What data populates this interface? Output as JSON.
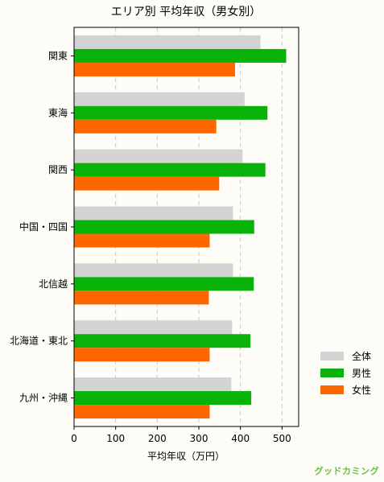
{
  "chart_data": {
    "type": "bar",
    "orientation": "horizontal",
    "title": "エリア別 平均年収（男女別）",
    "xlabel": "平均年収（万円）",
    "ylabel": "",
    "xlim": [
      0,
      540
    ],
    "xticks": [
      "0",
      "100",
      "200",
      "300",
      "400",
      "500"
    ],
    "grid": true,
    "legend_position": "right",
    "categories": [
      "関東",
      "東海",
      "関西",
      "中国・四国",
      "北信越",
      "北海道・東北",
      "九州・沖縄"
    ],
    "series": [
      {
        "name": "全体",
        "color": "#d3d3d3",
        "values": [
          448,
          410,
          405,
          382,
          382,
          380,
          378
        ]
      },
      {
        "name": "男性",
        "color": "#08b208",
        "values": [
          510,
          465,
          460,
          433,
          432,
          424,
          426
        ]
      },
      {
        "name": "女性",
        "color": "#ff6600",
        "values": [
          387,
          342,
          349,
          326,
          324,
          326,
          326
        ]
      }
    ]
  },
  "brand": {
    "text": "グッドカミング"
  }
}
